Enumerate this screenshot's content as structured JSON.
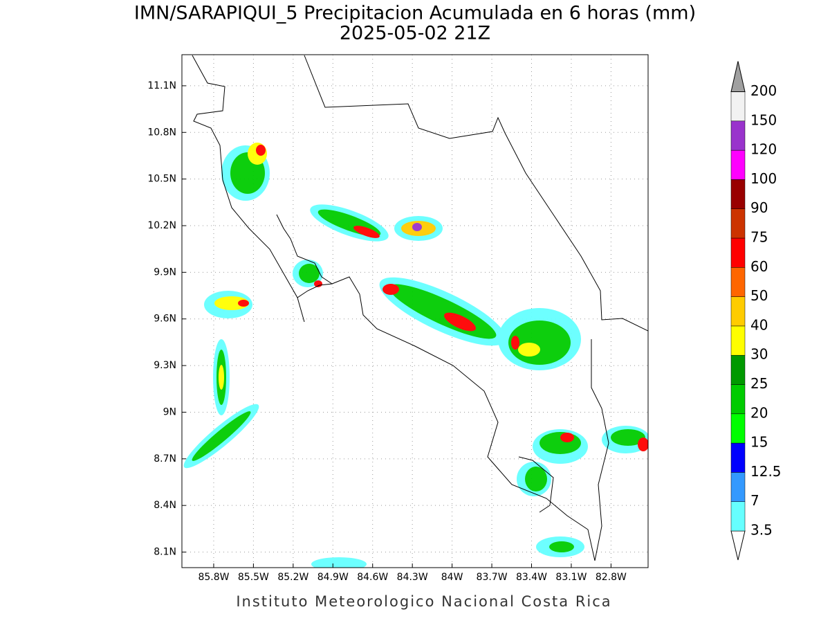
{
  "map": {
    "title": "IMN/SARAPIQUI_5 Precipitacion Acumulada en 6 horas (mm)",
    "subtitle": "2025-05-02 21Z",
    "footer": "Instituto Meteorologico Nacional Costa Rica",
    "xlim": [
      -86.04,
      -82.52
    ],
    "ylim": [
      8.0,
      11.3
    ],
    "xticks": [
      {
        "value": -85.8,
        "label": "85.8W"
      },
      {
        "value": -85.5,
        "label": "85.5W"
      },
      {
        "value": -85.2,
        "label": "85.2W"
      },
      {
        "value": -84.9,
        "label": "84.9W"
      },
      {
        "value": -84.6,
        "label": "84.6W"
      },
      {
        "value": -84.3,
        "label": "84.3W"
      },
      {
        "value": -84.0,
        "label": "84W"
      },
      {
        "value": -83.7,
        "label": "83.7W"
      },
      {
        "value": -83.4,
        "label": "83.4W"
      },
      {
        "value": -83.1,
        "label": "83.1W"
      },
      {
        "value": -82.8,
        "label": "82.8W"
      }
    ],
    "yticks": [
      {
        "value": 8.1,
        "label": "8.1N"
      },
      {
        "value": 8.4,
        "label": "8.4N"
      },
      {
        "value": 8.7,
        "label": "8.7N"
      },
      {
        "value": 9.0,
        "label": "9N"
      },
      {
        "value": 9.3,
        "label": "9.3N"
      },
      {
        "value": 9.6,
        "label": "9.6N"
      },
      {
        "value": 9.9,
        "label": "9.9N"
      },
      {
        "value": 10.2,
        "label": "10.2N"
      },
      {
        "value": 10.5,
        "label": "10.5N"
      },
      {
        "value": 10.8,
        "label": "10.8N"
      },
      {
        "value": 11.1,
        "label": "11.1N"
      }
    ],
    "grid": true,
    "colorbar": {
      "levels": [
        3.5,
        7,
        12.5,
        15,
        20,
        25,
        30,
        40,
        50,
        60,
        75,
        90,
        100,
        120,
        150,
        200
      ],
      "colors": [
        "#66ffff",
        "#3399ff",
        "#0000ff",
        "#00ff00",
        "#00cc00",
        "#009900",
        "#ffff00",
        "#ffcc00",
        "#ff6600",
        "#ff0000",
        "#cc3300",
        "#990000",
        "#ff00ff",
        "#9933cc",
        "#f2f2f2"
      ],
      "under_color": "#ffffff",
      "over_color": "#a0a0a0"
    }
  }
}
